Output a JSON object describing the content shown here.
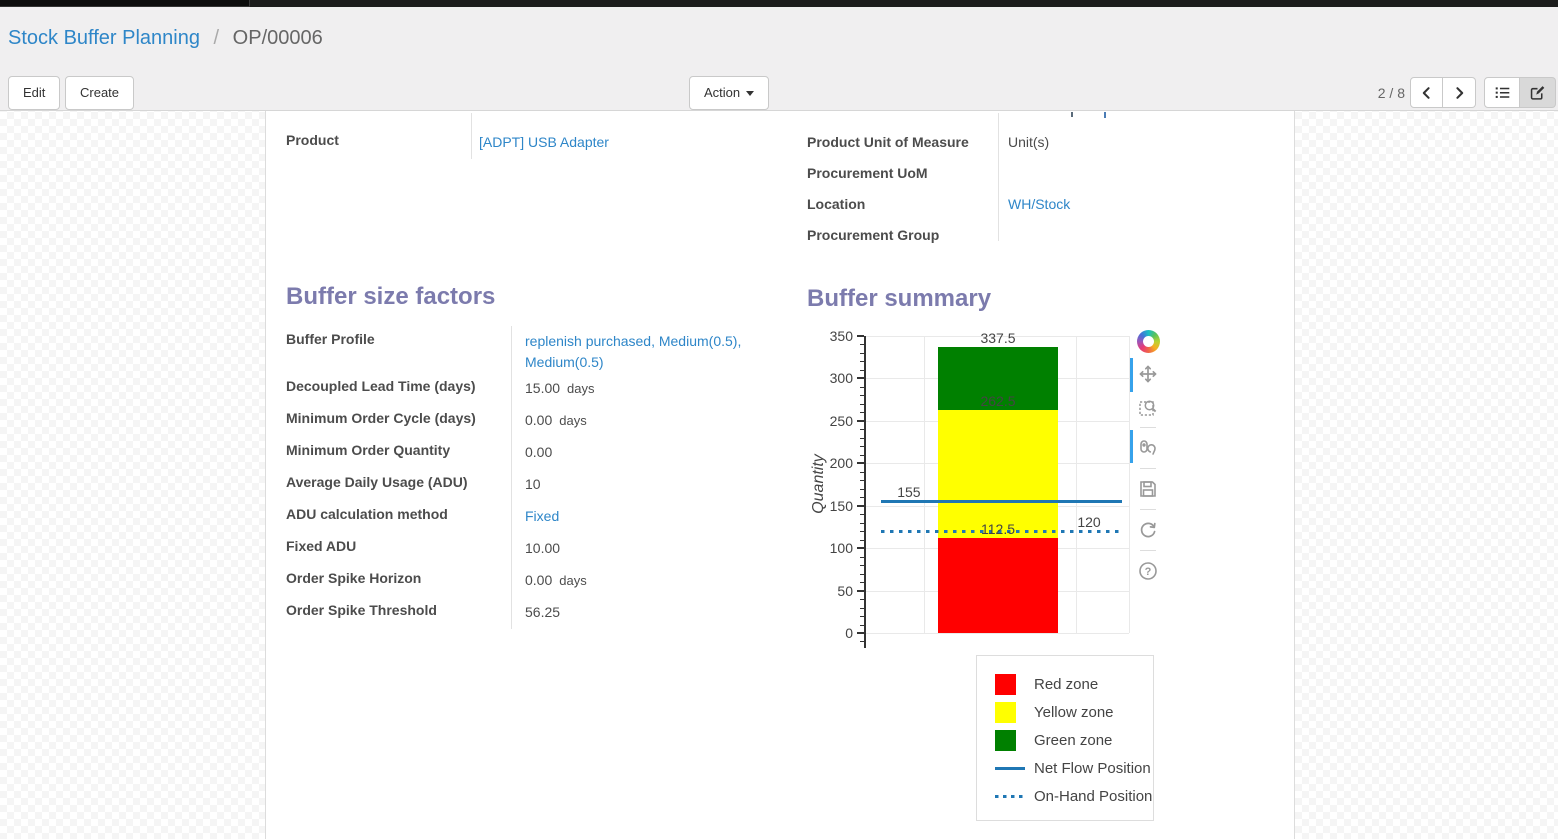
{
  "breadcrumb": {
    "parent": "Stock Buffer Planning",
    "separator": "/",
    "current": "OP/00006"
  },
  "toolbar": {
    "edit_label": "Edit",
    "create_label": "Create",
    "action_label": "Action",
    "pager_text": "2 / 8",
    "icons": [
      "prev-arrow",
      "next-arrow",
      "list-view",
      "form-view"
    ]
  },
  "form": {
    "product": {
      "label": "Product",
      "value": "[ADPT] USB Adapter"
    },
    "right_fields": [
      {
        "label": "Product Unit of Measure",
        "value": "Unit(s)",
        "link": false
      },
      {
        "label": "Procurement UoM",
        "value": "",
        "link": false
      },
      {
        "label": "Location",
        "value": "WH/Stock",
        "link": true
      },
      {
        "label": "Procurement Group",
        "value": "",
        "link": false
      }
    ],
    "buffer_factors": {
      "title": "Buffer size factors",
      "fields": [
        {
          "label": "Buffer Profile",
          "value": "replenish purchased, Medium(0.5), Medium(0.5)",
          "unit": "",
          "link": true
        },
        {
          "label": "Decoupled Lead Time (days)",
          "value": "15.00",
          "unit": "days",
          "link": false
        },
        {
          "label": "Minimum Order Cycle (days)",
          "value": "0.00",
          "unit": "days",
          "link": false
        },
        {
          "label": "Minimum Order Quantity",
          "value": "0.00",
          "unit": "",
          "link": false
        },
        {
          "label": "Average Daily Usage (ADU)",
          "value": "10",
          "unit": "",
          "link": false
        },
        {
          "label": "ADU calculation method",
          "value": "Fixed",
          "unit": "",
          "link": true
        },
        {
          "label": "Fixed ADU",
          "value": "10.00",
          "unit": "",
          "link": false
        },
        {
          "label": "Order Spike Horizon",
          "value": "0.00",
          "unit": "days",
          "link": false
        },
        {
          "label": "Order Spike Threshold",
          "value": "56.25",
          "unit": "",
          "link": false
        }
      ]
    },
    "buffer_summary": {
      "title": "Buffer summary"
    }
  },
  "chart_data": {
    "type": "bar",
    "stacked": true,
    "title": "Buffer summary",
    "xlabel": "",
    "ylabel": "Quantity",
    "ylim": [
      0,
      350
    ],
    "ytick_step": 50,
    "yminor_step": 10,
    "grid": true,
    "zones": [
      {
        "name": "Red zone",
        "color": "#ff0000",
        "from": 0,
        "to": 112.5
      },
      {
        "name": "Yellow zone",
        "color": "#ffff00",
        "from": 112.5,
        "to": 262.5
      },
      {
        "name": "Green zone",
        "color": "#008000",
        "from": 262.5,
        "to": 337.5
      }
    ],
    "lines": [
      {
        "name": "Net Flow Position",
        "value": 155,
        "style": "solid",
        "color": "#1f77b4",
        "label": "155",
        "label_x": 0.163
      },
      {
        "name": "On-Hand Position",
        "value": 120,
        "style": "dotted",
        "color": "#1f77b4",
        "label": "120",
        "label_x": 0.848
      }
    ],
    "bar_labels": [
      {
        "text": "337.5",
        "y": 337.5
      },
      {
        "text": "262.5",
        "y": 262.5
      },
      {
        "text": "112.5",
        "y": 112.5
      }
    ],
    "legend_position": "bottom-right",
    "legend": [
      {
        "label": "Red zone",
        "type": "box",
        "color": "#ff0000"
      },
      {
        "label": "Yellow zone",
        "type": "box",
        "color": "#ffff00"
      },
      {
        "label": "Green zone",
        "type": "box",
        "color": "#008000"
      },
      {
        "label": "Net Flow Position",
        "type": "line",
        "color": "#1f77b4"
      },
      {
        "label": "On-Hand Position",
        "type": "dots",
        "color": "#1f77b4"
      }
    ],
    "modebar_icons": [
      "plotly-logo",
      "pan",
      "box-zoom",
      "hover-compare",
      "save",
      "reset-axes",
      "help"
    ]
  }
}
